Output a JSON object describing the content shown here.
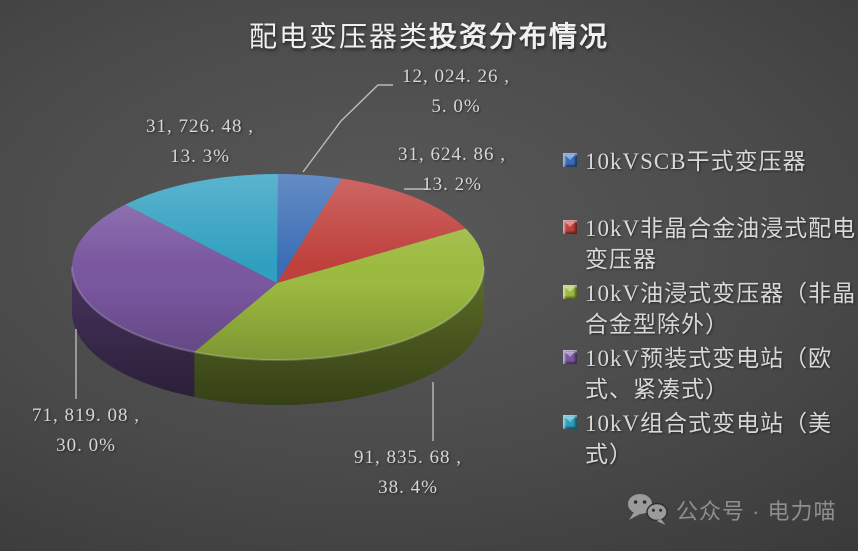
{
  "title": {
    "part1": "配电变压器类",
    "part2": "投资分布情况"
  },
  "chart_data": {
    "type": "pie",
    "style": "3d",
    "title": "配电变压器类投资分布情况",
    "legend_position": "right",
    "start_angle_deg": 0,
    "slices": [
      {
        "label": "10kVSCB干式变压器",
        "value": 12024.26,
        "pct": 5.0,
        "color": "#3A6DB6",
        "display": "12, 024. 26 ,",
        "display_pct": "5. 0%"
      },
      {
        "label": "10kV非晶合金油浸式配电变压器",
        "value": 31624.86,
        "pct": 13.2,
        "color": "#BF3F3B",
        "display": "31, 624. 86 ,",
        "display_pct": "13. 2%"
      },
      {
        "label": "10kV油浸式变压器（非晶合金型除外）",
        "value": 91835.68,
        "pct": 38.4,
        "color": "#9CBA40",
        "display": "91, 835. 68 ,",
        "display_pct": "38. 4%"
      },
      {
        "label": "10kV预装式变电站（欧式、紧凑式）",
        "value": 71819.08,
        "pct": 30.0,
        "color": "#7A57A0",
        "display": "71, 819. 08 ,",
        "display_pct": "30. 0%"
      },
      {
        "label": "10kV组合式变电站（美式）",
        "value": 31726.48,
        "pct": 13.3,
        "color": "#2F9FC0",
        "display": "31, 726. 48 ,",
        "display_pct": "13. 3%"
      }
    ]
  },
  "legend": {
    "items": [
      {
        "line1": "10kVSCB干式变压器",
        "line2": ""
      },
      {
        "line1": "10kV非晶合金油浸式配电",
        "line2": "变压器"
      },
      {
        "line1": "10kV油浸式变压器（非晶",
        "line2": "合金型除外）"
      },
      {
        "line1": "10kV预装式变电站（欧",
        "line2": "式、紧凑式）"
      },
      {
        "line1": "10kV组合式变电站（美",
        "line2": "式）"
      }
    ]
  },
  "watermark": {
    "icon": "wechat-icon",
    "text": "公众号 · 电力喵"
  }
}
